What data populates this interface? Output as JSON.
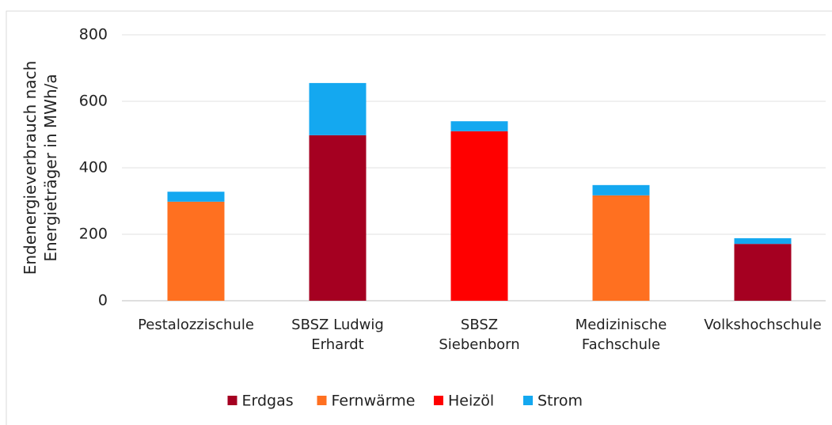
{
  "chart_data": {
    "type": "stacked_bar",
    "y_label": "Endenergieverbrauch nach\nEnergieträger in MWh/a",
    "categories": [
      "Pestalozzischule",
      "SBSZ Ludwig\nErhardt",
      "SBSZ\nSiebenborn",
      "Medizinische\nFachschule",
      "Volkshochschule"
    ],
    "series": [
      {
        "name": "Erdgas",
        "color": "#a50021",
        "values": [
          0,
          498,
          0,
          0,
          171
        ]
      },
      {
        "name": "Fernwärme",
        "color": "#ff7020",
        "values": [
          298,
          0,
          0,
          317,
          0
        ]
      },
      {
        "name": "Heizöl",
        "color": "#ff0000",
        "values": [
          0,
          0,
          510,
          0,
          0
        ]
      },
      {
        "name": "Strom",
        "color": "#14a8f0",
        "values": [
          30,
          157,
          30,
          31,
          17
        ]
      }
    ],
    "ylim": [
      0,
      800
    ],
    "yticks": [
      0,
      200,
      400,
      600,
      800
    ],
    "grid": true,
    "legend": "bottom"
  }
}
